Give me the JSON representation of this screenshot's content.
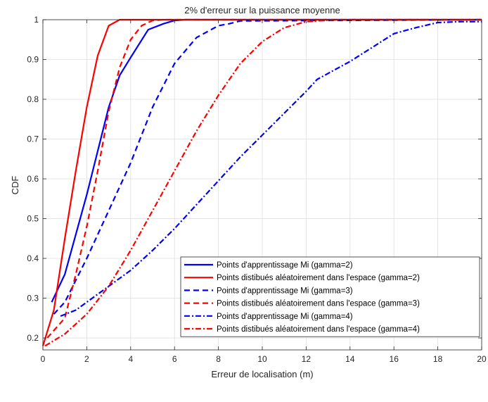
{
  "chart_data": {
    "type": "line",
    "title": "2% d'erreur sur la puissance moyenne",
    "xlabel": "Erreur de localisation (m)",
    "ylabel": "CDF",
    "xlim": [
      0,
      20
    ],
    "ylim": [
      0.17,
      1.0
    ],
    "xticks": [
      0,
      2,
      4,
      6,
      8,
      10,
      12,
      14,
      16,
      18,
      20
    ],
    "yticks": [
      0.2,
      0.3,
      0.4,
      0.5,
      0.6,
      0.7,
      0.8,
      0.9,
      1
    ],
    "xtick_labels": [
      "0",
      "2",
      "4",
      "6",
      "8",
      "10",
      "12",
      "14",
      "16",
      "18",
      "20"
    ],
    "ytick_labels": [
      "0.2",
      "0.3",
      "0.4",
      "0.5",
      "0.6",
      "0.7",
      "0.8",
      "0.9",
      "1"
    ],
    "grid": true,
    "legend_position": "bottom-right",
    "series": [
      {
        "name": "Points d'apprentissage Mi (gamma=2)",
        "color": "#0000ff",
        "style": "solid",
        "x": [
          0.4,
          1,
          2,
          3,
          3.5,
          4,
          4.8,
          5.5,
          6,
          6.5,
          20
        ],
        "y": [
          0.29,
          0.36,
          0.56,
          0.78,
          0.86,
          0.905,
          0.975,
          0.99,
          0.998,
          1.0,
          1.0
        ]
      },
      {
        "name": "Points distibués aléatoirement dans l'espace (gamma=2)",
        "color": "#ff0000",
        "style": "solid",
        "x": [
          0,
          0.5,
          1,
          1.5,
          2,
          2.5,
          3,
          3.5,
          4,
          20
        ],
        "y": [
          0.18,
          0.27,
          0.45,
          0.62,
          0.78,
          0.91,
          0.985,
          1.0,
          1.0,
          1.0
        ]
      },
      {
        "name": "Points d'apprentissage Mi (gamma=3)",
        "color": "#0000ff",
        "style": "dashed",
        "x": [
          0.5,
          1,
          2,
          3,
          4,
          5,
          6,
          7,
          8,
          8.5,
          9,
          20
        ],
        "y": [
          0.26,
          0.29,
          0.4,
          0.52,
          0.64,
          0.78,
          0.89,
          0.955,
          0.985,
          0.99,
          0.997,
          1.0
        ]
      },
      {
        "name": "Points distibués aléatoirement dans l'espace (gamma=3)",
        "color": "#ff0000",
        "style": "dashed",
        "x": [
          0.2,
          1,
          1.5,
          2,
          2.5,
          3,
          3.5,
          4,
          4.5,
          5,
          5.5,
          20
        ],
        "y": [
          0.2,
          0.25,
          0.36,
          0.48,
          0.62,
          0.77,
          0.88,
          0.95,
          0.985,
          0.998,
          1.0,
          1.0
        ]
      },
      {
        "name": "Points d'apprentissage Mi (gamma=4)",
        "color": "#0000ff",
        "style": "dashdot",
        "x": [
          0.8,
          1.5,
          2,
          3,
          4,
          5,
          6,
          7,
          8,
          9,
          10,
          11,
          12,
          12.5,
          13,
          14,
          15,
          16,
          17,
          18,
          19,
          20
        ],
        "y": [
          0.255,
          0.27,
          0.29,
          0.33,
          0.37,
          0.42,
          0.475,
          0.535,
          0.595,
          0.655,
          0.71,
          0.765,
          0.82,
          0.85,
          0.865,
          0.895,
          0.93,
          0.965,
          0.98,
          0.993,
          0.995,
          0.995
        ]
      },
      {
        "name": "Points distibués aléatoirement dans l'espace (gamma=4)",
        "color": "#ff0000",
        "style": "dashdot",
        "x": [
          0.1,
          1,
          2,
          3,
          4,
          5,
          6,
          7,
          8,
          9,
          10,
          11,
          12,
          13,
          14,
          20
        ],
        "y": [
          0.18,
          0.21,
          0.26,
          0.33,
          0.42,
          0.52,
          0.62,
          0.72,
          0.81,
          0.89,
          0.945,
          0.98,
          0.995,
          0.999,
          1.0,
          1.0
        ]
      }
    ]
  }
}
